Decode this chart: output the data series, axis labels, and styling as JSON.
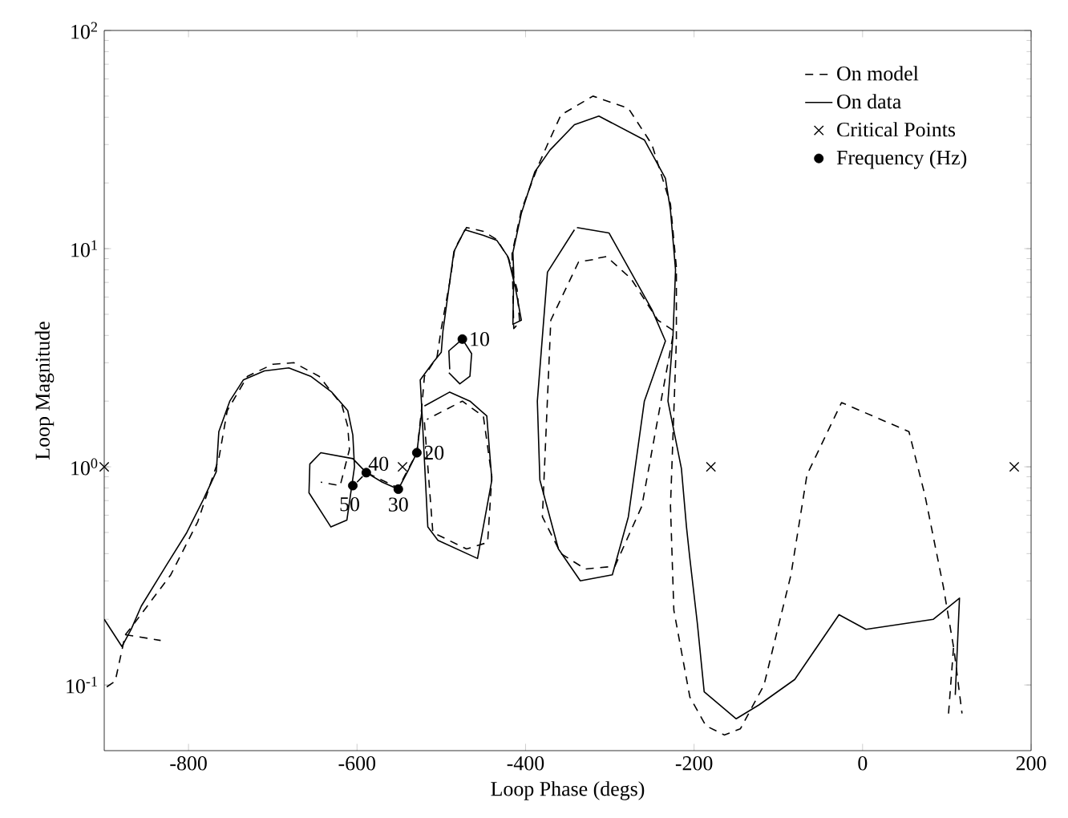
{
  "chart_data": {
    "type": "line",
    "xlabel": "Loop Phase (degs)",
    "ylabel": "Loop Magnitude",
    "log": "y",
    "legend": "top right",
    "xlim": [
      -900,
      200
    ],
    "xticks": [
      -800,
      -600,
      -400,
      -200,
      0,
      200
    ],
    "ylim": [
      0.05,
      100
    ],
    "yticks": [
      {
        "value": 0.1,
        "label": "10$^{-1}$"
      },
      {
        "value": 1,
        "label": "10$^{0}$"
      },
      {
        "value": 10,
        "label": "10$^{1}$"
      },
      {
        "value": 100,
        "label": "10$^{2}$"
      }
    ],
    "series": [
      {
        "name": "On model",
        "color": "#000000",
        "line_style": "dashed",
        "marker": "none",
        "x": [
          -600,
          -589,
          -551,
          -529,
          -523,
          -520,
          -505,
          -500,
          -490,
          -484,
          -470,
          -450,
          -434,
          -420,
          -410,
          -407,
          -414,
          -416,
          -405,
          -385,
          -374,
          -358,
          -320,
          -278,
          -250,
          -228,
          -221,
          -221,
          -228,
          -224,
          -205,
          -186,
          -164,
          -145,
          -117,
          -85,
          -66,
          -25,
          55,
          74,
          96,
          108.5,
          118
        ],
        "values": [
          0.85,
          0.94,
          0.8,
          1.16,
          1.9,
          2.6,
          3.2,
          4.3,
          7,
          10,
          12.5,
          12,
          11,
          9,
          6.5,
          4.6,
          4.3,
          9.5,
          15,
          24,
          30,
          41,
          50,
          44,
          30,
          16,
          8.2,
          3.8,
          0.66,
          0.22,
          0.088,
          0.065,
          0.059,
          0.063,
          0.1,
          0.32,
          0.92,
          1.97,
          1.45,
          0.74,
          0.28,
          0.145,
          0.074
        ]
      },
      {
        "name": "On data",
        "color": "#000000",
        "line_style": "solid",
        "marker": "none",
        "x": [
          -900,
          -879,
          -868,
          -856,
          -827,
          -802,
          -783,
          -767,
          -764,
          -751,
          -735,
          -710,
          -681,
          -655,
          -630,
          -611,
          -605,
          -603,
          -612,
          -631,
          -657,
          -656,
          -643,
          -605,
          -589,
          -570,
          -551,
          -540,
          -529,
          -523,
          -525,
          -510,
          -500,
          -498,
          -491,
          -485,
          -472,
          -450,
          -434,
          -421,
          -412,
          -405,
          -415,
          -414,
          -415,
          -405,
          -389,
          -371,
          -342,
          -313,
          -259,
          -234,
          -228,
          -222,
          -225,
          -231,
          -215,
          -209,
          -205,
          -196,
          -188,
          -150,
          -123,
          -80.5,
          -28,
          4,
          84,
          115,
          110
        ],
        "values": [
          0.2,
          0.15,
          0.18,
          0.23,
          0.35,
          0.5,
          0.7,
          0.95,
          1.45,
          2.0,
          2.5,
          2.75,
          2.84,
          2.6,
          2.2,
          1.81,
          1.4,
          1.0,
          0.57,
          0.53,
          0.76,
          1.03,
          1.16,
          1.09,
          0.94,
          0.85,
          0.79,
          0.95,
          1.16,
          1.81,
          2.5,
          3.0,
          3.35,
          4.2,
          6.6,
          9.7,
          12.2,
          11.5,
          10.9,
          9.2,
          6.6,
          4.7,
          4.5,
          7.7,
          9.6,
          14.5,
          22.5,
          28.3,
          37,
          40.5,
          31.5,
          21,
          15,
          8,
          4,
          2.0,
          0.98,
          0.53,
          0.38,
          0.19,
          0.093,
          0.07,
          0.081,
          0.106,
          0.21,
          0.18,
          0.2,
          0.25,
          0.09
        ]
      },
      {
        "name": "Critical Points",
        "color": "#000000",
        "type": "scatter",
        "marker": "cross",
        "x": [
          -900,
          -546,
          -180,
          180
        ],
        "values": [
          1,
          1,
          1,
          1
        ]
      },
      {
        "name": "Frequency (Hz)",
        "color": "#000000",
        "type": "scatter",
        "marker": "circle",
        "x": [
          -475,
          -529,
          -551,
          -589,
          -605
        ],
        "values": [
          3.85,
          1.16,
          0.79,
          0.94,
          0.82
        ]
      },
      {
        "color": "#000000",
        "line_style": "dashed",
        "marker": "none",
        "x": [
          -897,
          -887,
          -875,
          -865,
          -821,
          -789,
          -764,
          -754,
          -730,
          -700,
          -675,
          -645,
          -618,
          -611,
          -609,
          -620,
          -643
        ],
        "values": [
          0.098,
          0.104,
          0.17,
          0.19,
          0.32,
          0.56,
          1.09,
          1.81,
          2.6,
          2.95,
          3.0,
          2.6,
          1.92,
          1.53,
          1.2,
          0.82,
          0.85
        ]
      },
      {
        "color": "#000000",
        "line_style": "dashed",
        "marker": "none",
        "x": [
          -875,
          -833
        ],
        "values": [
          0.17,
          0.16
        ]
      },
      {
        "color": "#000000",
        "line_style": "dashed",
        "marker": "none",
        "x": [
          -320,
          -337,
          -370,
          -380,
          -358,
          -329,
          -294,
          -262,
          -224,
          -243,
          -275,
          -304,
          -317
        ],
        "values": [
          8.9,
          8.7,
          4.7,
          0.59,
          0.4,
          0.34,
          0.35,
          0.66,
          4.2,
          4.7,
          7.3,
          9.2,
          9.0
        ]
      },
      {
        "color": "#000000",
        "line_style": "dashed",
        "marker": "none",
        "x": [
          -520,
          -510,
          -470,
          -445,
          -440,
          -450,
          -475,
          -517
        ],
        "values": [
          1.6,
          0.5,
          0.42,
          0.45,
          0.9,
          1.7,
          2.0,
          1.65
        ]
      },
      {
        "color": "#000000",
        "line_style": "dashed",
        "marker": "none",
        "x": [
          102,
          108
        ],
        "values": [
          0.074,
          0.15
        ]
      },
      {
        "color": "#000000",
        "line_style": "solid",
        "marker": "none",
        "x": [
          -491,
          -478,
          -466,
          -464,
          -475,
          -491,
          -490
        ],
        "values": [
          2.7,
          2.4,
          2.6,
          3.3,
          3.85,
          3.4,
          2.8
        ]
      },
      {
        "color": "#000000",
        "line_style": "solid",
        "marker": "none",
        "x": [
          -523,
          -516,
          -504,
          -457,
          -440,
          -446,
          -466,
          -490,
          -520
        ],
        "values": [
          1.81,
          0.53,
          0.46,
          0.38,
          0.87,
          1.71,
          2.0,
          2.2,
          1.9
        ]
      },
      {
        "color": "#000000",
        "line_style": "solid",
        "marker": "none",
        "x": [
          -339,
          -301,
          -250,
          -234,
          -259,
          -278,
          -297,
          -335,
          -361,
          -383,
          -386,
          -374,
          -342
        ],
        "values": [
          12.5,
          11.8,
          5.25,
          3.77,
          2.0,
          0.59,
          0.32,
          0.3,
          0.42,
          0.87,
          2.0,
          7.8,
          12.2
        ]
      }
    ],
    "annotations": [
      {
        "text": "10",
        "x": -475,
        "y": 3.85
      },
      {
        "text": "20",
        "x": -529,
        "y": 1.16
      },
      {
        "text": "30",
        "x": -551,
        "y": 0.79
      },
      {
        "text": "40",
        "x": -589,
        "y": 0.94
      },
      {
        "text": "50",
        "x": -605,
        "y": 0.82
      }
    ]
  }
}
